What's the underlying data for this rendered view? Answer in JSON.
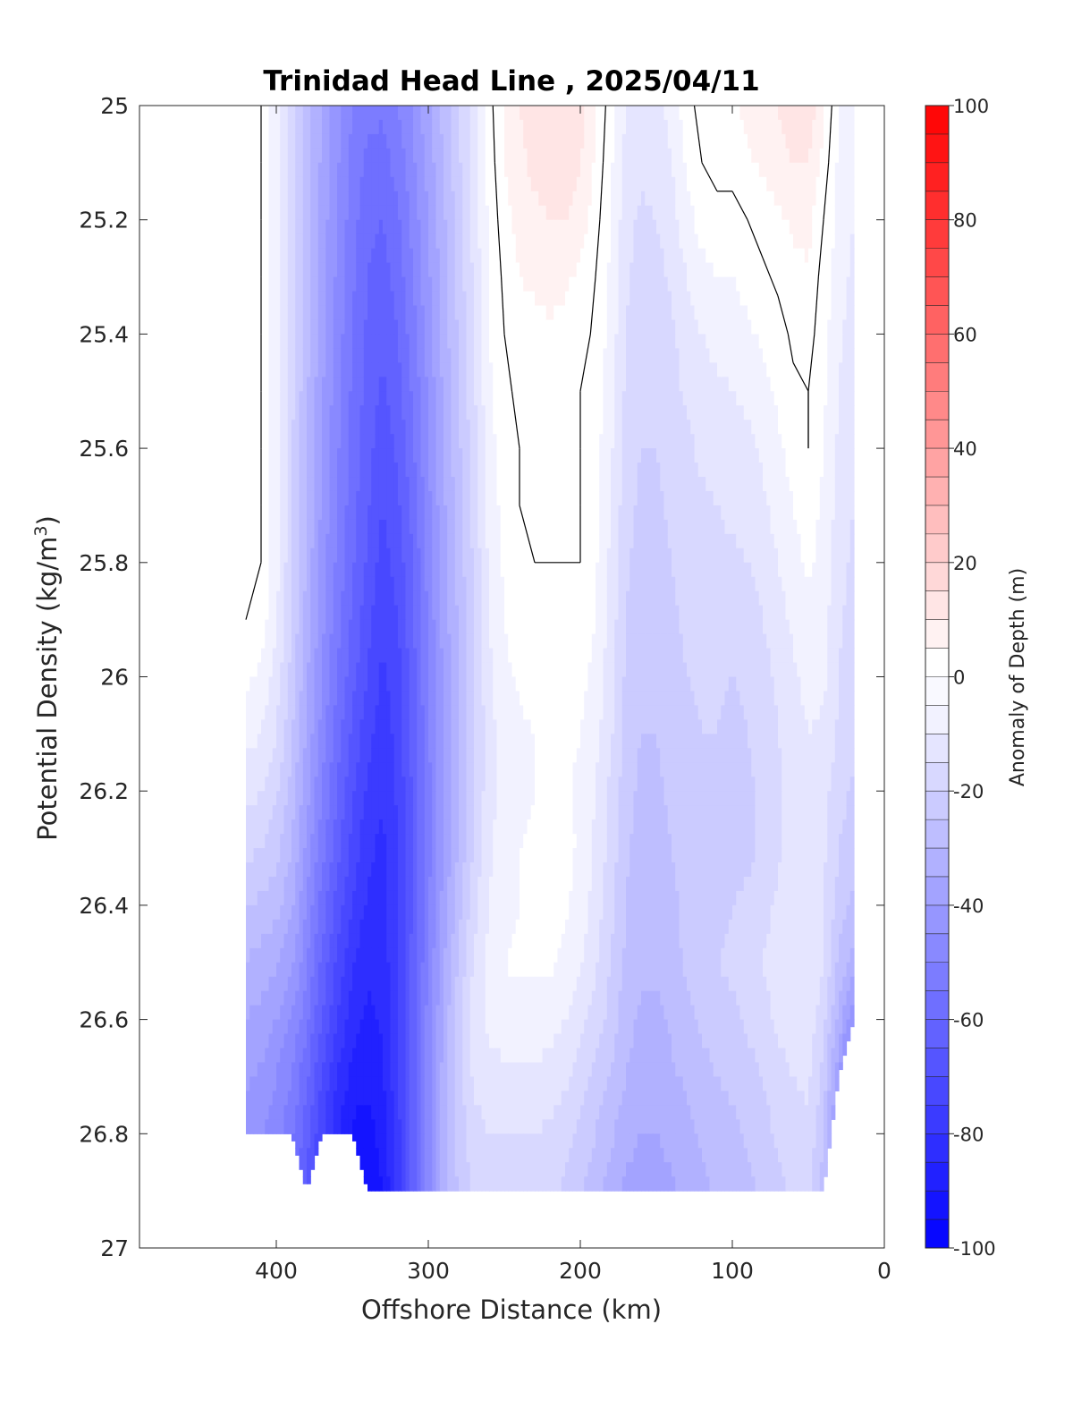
{
  "chart_data": {
    "type": "heatmap",
    "subtype": "filled-contour",
    "title": "Trinidad Head Line , 2025/04/11",
    "xlabel": "Offshore Distance (km)",
    "ylabel": "Potential Density (kg/m",
    "ylabel_sup": "3",
    "ylabel_close": ")",
    "xlim": [
      490,
      0
    ],
    "ylim": [
      25,
      27
    ],
    "x_reversed": true,
    "y_reversed": true,
    "x_ticks": [
      400,
      300,
      200,
      100,
      0
    ],
    "x_tick_labels": [
      "400",
      "300",
      "200",
      "100",
      "0"
    ],
    "y_ticks": [
      25,
      25.2,
      25.4,
      25.6,
      25.8,
      26,
      26.2,
      26.4,
      26.6,
      26.8,
      27
    ],
    "y_tick_labels": [
      "25",
      "25.2",
      "25.4",
      "25.6",
      "25.8",
      "26",
      "26.2",
      "26.4",
      "26.6",
      "26.8",
      "27"
    ],
    "grid": false,
    "colorbar": {
      "label": "Anomaly of Depth (m)",
      "range": [
        -100,
        100
      ],
      "step": 5,
      "ticks": [
        100,
        80,
        60,
        40,
        20,
        0,
        -20,
        -40,
        -60,
        -80,
        -100
      ],
      "tick_labels": [
        "100",
        "80",
        "60",
        "40",
        "20",
        "0",
        "-20",
        "-40",
        "-60",
        "-80",
        "-100"
      ],
      "colormap": "blue-white-red",
      "negative_color": "#0000ff",
      "positive_color": "#ff0000",
      "neutral_color": "#ffffff"
    },
    "zero_contour_color": "#000000",
    "field": {
      "x": [
        420,
        410,
        400,
        390,
        380,
        370,
        360,
        350,
        340,
        330,
        320,
        310,
        300,
        290,
        280,
        270,
        260,
        250,
        240,
        230,
        220,
        210,
        200,
        190,
        180,
        170,
        160,
        150,
        140,
        130,
        120,
        110,
        100,
        90,
        80,
        70,
        60,
        50,
        40,
        30,
        20
      ],
      "y": [
        25.0,
        25.1,
        25.2,
        25.3,
        25.4,
        25.5,
        25.6,
        25.7,
        25.8,
        25.9,
        26.0,
        26.1,
        26.2,
        26.3,
        26.4,
        26.5,
        26.6,
        26.7,
        26.8,
        26.9
      ],
      "bottom_density_by_x": [
        26.8,
        26.8,
        26.8,
        26.8,
        26.9,
        26.8,
        26.8,
        26.8,
        26.9,
        26.9,
        26.9,
        26.9,
        26.9,
        26.9,
        26.9,
        26.9,
        26.9,
        26.9,
        26.9,
        26.9,
        26.9,
        26.9,
        26.9,
        26.9,
        26.9,
        26.9,
        26.9,
        26.9,
        26.9,
        26.9,
        26.9,
        26.9,
        26.9,
        26.9,
        26.9,
        26.9,
        26.9,
        26.9,
        26.9,
        26.7,
        26.6
      ],
      "top_density_by_x": [
        25.1,
        25.1,
        25.0,
        25.0,
        25.0,
        25.0,
        25.0,
        25.0,
        25.0,
        25.0,
        25.0,
        25.0,
        25.0,
        25.0,
        25.0,
        25.0,
        25.0,
        25.0,
        25.0,
        25.0,
        25.0,
        25.0,
        25.0,
        25.0,
        25.0,
        25.0,
        25.0,
        25.0,
        25.0,
        25.0,
        25.0,
        25.0,
        25.0,
        25.0,
        25.0,
        25.0,
        25.0,
        25.0,
        25.0,
        25.0,
        25.0
      ],
      "values": [
        [
          3,
          0,
          -8,
          -18,
          -27,
          -36,
          -44,
          -50,
          -54,
          -54,
          -50,
          -44,
          -36,
          -28,
          -20,
          -12,
          -2,
          6,
          10,
          12,
          14,
          14,
          12,
          6,
          -3,
          -10,
          -12,
          -12,
          -8,
          -2,
          2,
          3,
          4,
          6,
          8,
          10,
          12,
          14,
          6,
          -5,
          -8
        ],
        [
          3,
          0,
          -8,
          -18,
          -27,
          -36,
          -44,
          -52,
          -56,
          -57,
          -53,
          -46,
          -38,
          -30,
          -21,
          -13,
          -3,
          5,
          9,
          11,
          12,
          12,
          10,
          4,
          -4,
          -12,
          -14,
          -13,
          -10,
          -4,
          0,
          2,
          2,
          4,
          6,
          8,
          10,
          10,
          3,
          -6,
          -9
        ],
        [
          3,
          0,
          -8,
          -18,
          -28,
          -37,
          -45,
          -53,
          -58,
          -60,
          -56,
          -48,
          -40,
          -31,
          -22,
          -13,
          -4,
          3,
          7,
          9,
          10,
          10,
          8,
          2,
          -5,
          -13,
          -16,
          -15,
          -12,
          -7,
          -3,
          -2,
          -2,
          0,
          2,
          4,
          6,
          7,
          0,
          -7,
          -10
        ],
        [
          3,
          0,
          -8,
          -18,
          -28,
          -37,
          -46,
          -54,
          -60,
          -62,
          -58,
          -50,
          -41,
          -32,
          -23,
          -14,
          -4,
          1,
          5,
          6,
          7,
          6,
          4,
          0,
          -6,
          -14,
          -17,
          -17,
          -14,
          -10,
          -7,
          -5,
          -5,
          -3,
          -1,
          1,
          3,
          4,
          -2,
          -8,
          -11
        ],
        [
          4,
          0,
          -8,
          -18,
          -28,
          -38,
          -47,
          -55,
          -61,
          -64,
          -60,
          -52,
          -42,
          -33,
          -24,
          -15,
          -5,
          0,
          3,
          3,
          4,
          3,
          2,
          -1,
          -7,
          -15,
          -18,
          -18,
          -16,
          -12,
          -10,
          -8,
          -8,
          -6,
          -4,
          -2,
          1,
          2,
          -3,
          -9,
          -12
        ],
        [
          3,
          0,
          -8,
          -18,
          -29,
          -39,
          -48,
          -56,
          -62,
          -66,
          -62,
          -54,
          -44,
          -34,
          -25,
          -16,
          -6,
          -1,
          1,
          1,
          1,
          0,
          0,
          -2,
          -8,
          -16,
          -19,
          -19,
          -17,
          -14,
          -12,
          -11,
          -10,
          -9,
          -7,
          -4,
          -1,
          0,
          -4,
          -10,
          -13
        ],
        [
          1,
          0,
          -8,
          -19,
          -30,
          -40,
          -49,
          -57,
          -63,
          -68,
          -64,
          -56,
          -45,
          -35,
          -26,
          -17,
          -7,
          -2,
          0,
          0,
          0,
          0,
          0,
          -3,
          -9,
          -17,
          -20,
          -20,
          -18,
          -16,
          -14,
          -13,
          -12,
          -11,
          -9,
          -6,
          -3,
          0,
          -5,
          -11,
          -14
        ],
        [
          0,
          0,
          -8,
          -19,
          -30,
          -41,
          -50,
          -58,
          -64,
          -70,
          -66,
          -58,
          -47,
          -36,
          -27,
          -18,
          -8,
          -3,
          0,
          0,
          0,
          0,
          0,
          -3,
          -10,
          -18,
          -21,
          -21,
          -19,
          -17,
          -16,
          -15,
          -14,
          -13,
          -11,
          -8,
          -5,
          -2,
          -6,
          -12,
          -15
        ],
        [
          0,
          0,
          -8,
          -19,
          -31,
          -42,
          -51,
          -59,
          -66,
          -72,
          -68,
          -60,
          -48,
          -37,
          -28,
          -19,
          -9,
          -4,
          -1,
          0,
          0,
          0,
          0,
          -4,
          -11,
          -19,
          -22,
          -22,
          -20,
          -18,
          -17,
          -16,
          -16,
          -15,
          -13,
          -10,
          -7,
          -4,
          -7,
          -13,
          -16
        ],
        [
          0,
          -2,
          -9,
          -20,
          -32,
          -43,
          -53,
          -61,
          -68,
          -74,
          -70,
          -61,
          -49,
          -38,
          -29,
          -20,
          -10,
          -5,
          -2,
          -1,
          -1,
          -1,
          -1,
          -5,
          -12,
          -20,
          -23,
          -23,
          -21,
          -19,
          -18,
          -18,
          -18,
          -17,
          -15,
          -12,
          -9,
          -6,
          -8,
          -14,
          -17
        ],
        [
          -4,
          -6,
          -12,
          -22,
          -34,
          -45,
          -55,
          -63,
          -70,
          -76,
          -72,
          -62,
          -50,
          -39,
          -30,
          -21,
          -11,
          -6,
          -4,
          -3,
          -2,
          -2,
          -3,
          -7,
          -13,
          -21,
          -24,
          -24,
          -22,
          -20,
          -19,
          -19,
          -20,
          -19,
          -17,
          -14,
          -11,
          -8,
          -9,
          -15,
          -18
        ],
        [
          -8,
          -10,
          -15,
          -24,
          -36,
          -47,
          -57,
          -66,
          -73,
          -78,
          -73,
          -63,
          -51,
          -40,
          -30,
          -21,
          -12,
          -8,
          -6,
          -5,
          -4,
          -4,
          -5,
          -8,
          -14,
          -22,
          -25,
          -25,
          -23,
          -21,
          -20,
          -20,
          -21,
          -20,
          -18,
          -15,
          -12,
          -10,
          -11,
          -16,
          -19
        ],
        [
          -13,
          -15,
          -19,
          -27,
          -38,
          -50,
          -60,
          -69,
          -76,
          -80,
          -74,
          -64,
          -52,
          -40,
          -30,
          -20,
          -12,
          -8,
          -6,
          -5,
          -4,
          -4,
          -6,
          -10,
          -16,
          -23,
          -26,
          -26,
          -24,
          -22,
          -21,
          -21,
          -22,
          -21,
          -19,
          -16,
          -13,
          -12,
          -13,
          -18,
          -21
        ],
        [
          -18,
          -20,
          -23,
          -30,
          -41,
          -53,
          -63,
          -72,
          -79,
          -81,
          -75,
          -64,
          -52,
          -40,
          -29,
          -19,
          -11,
          -7,
          -5,
          -4,
          -1,
          -3,
          -6,
          -11,
          -17,
          -24,
          -27,
          -27,
          -25,
          -23,
          -22,
          -22,
          -22,
          -21,
          -19,
          -16,
          -13,
          -12,
          -14,
          -20,
          -23
        ],
        [
          -24,
          -26,
          -28,
          -34,
          -45,
          -57,
          -67,
          -75,
          -81,
          -82,
          -75,
          -64,
          -51,
          -38,
          -27,
          -17,
          -10,
          -7,
          -5,
          -4,
          -2,
          -4,
          -7,
          -12,
          -18,
          -25,
          -28,
          -28,
          -26,
          -24,
          -22,
          -21,
          -20,
          -19,
          -17,
          -14,
          -12,
          -12,
          -15,
          -22,
          -26
        ],
        [
          -30,
          -32,
          -34,
          -39,
          -49,
          -61,
          -71,
          -79,
          -84,
          -83,
          -75,
          -63,
          -50,
          -36,
          -24,
          -14,
          -8,
          -5,
          -4,
          -4,
          -4,
          -6,
          -9,
          -14,
          -20,
          -26,
          -29,
          -29,
          -27,
          -24,
          -22,
          -20,
          -19,
          -17,
          -15,
          -12,
          -10,
          -10,
          -15,
          -26,
          -32
        ],
        [
          -35,
          -37,
          -40,
          -45,
          -54,
          -65,
          -75,
          -83,
          -86,
          -84,
          -75,
          -62,
          -48,
          -34,
          -22,
          -13,
          -9,
          -7,
          -7,
          -7,
          -8,
          -10,
          -13,
          -17,
          -22,
          -28,
          -31,
          -31,
          -29,
          -26,
          -24,
          -22,
          -21,
          -19,
          -17,
          -14,
          -12,
          -12,
          -18,
          -32,
          -45
        ],
        [
          -39,
          -41,
          -45,
          -50,
          -59,
          -70,
          -80,
          -87,
          -89,
          -86,
          -76,
          -62,
          -47,
          -33,
          -22,
          -14,
          -12,
          -11,
          -11,
          -11,
          -12,
          -14,
          -17,
          -21,
          -25,
          -30,
          -33,
          -33,
          -31,
          -29,
          -27,
          -25,
          -24,
          -22,
          -20,
          -17,
          -15,
          -14,
          -22,
          -40,
          -55
        ],
        [
          -42,
          -44,
          -48,
          -54,
          -63,
          -74,
          -84,
          -91,
          -92,
          -88,
          -77,
          -62,
          -47,
          -33,
          -23,
          -17,
          -15,
          -15,
          -15,
          -15,
          -16,
          -18,
          -21,
          -25,
          -29,
          -33,
          -35,
          -35,
          -33,
          -31,
          -29,
          -27,
          -26,
          -24,
          -22,
          -19,
          -17,
          -16,
          -25,
          -45,
          -60
        ],
        [
          -44,
          -46,
          -50,
          -56,
          -65,
          -77,
          -87,
          -94,
          -95,
          -90,
          -78,
          -62,
          -47,
          -33,
          -24,
          -19,
          -18,
          -18,
          -18,
          -18,
          -19,
          -21,
          -24,
          -28,
          -32,
          -36,
          -38,
          -38,
          -36,
          -33,
          -31,
          -29,
          -28,
          -26,
          -24,
          -21,
          -19,
          -18,
          -27,
          -47,
          -62
        ]
      ]
    }
  }
}
